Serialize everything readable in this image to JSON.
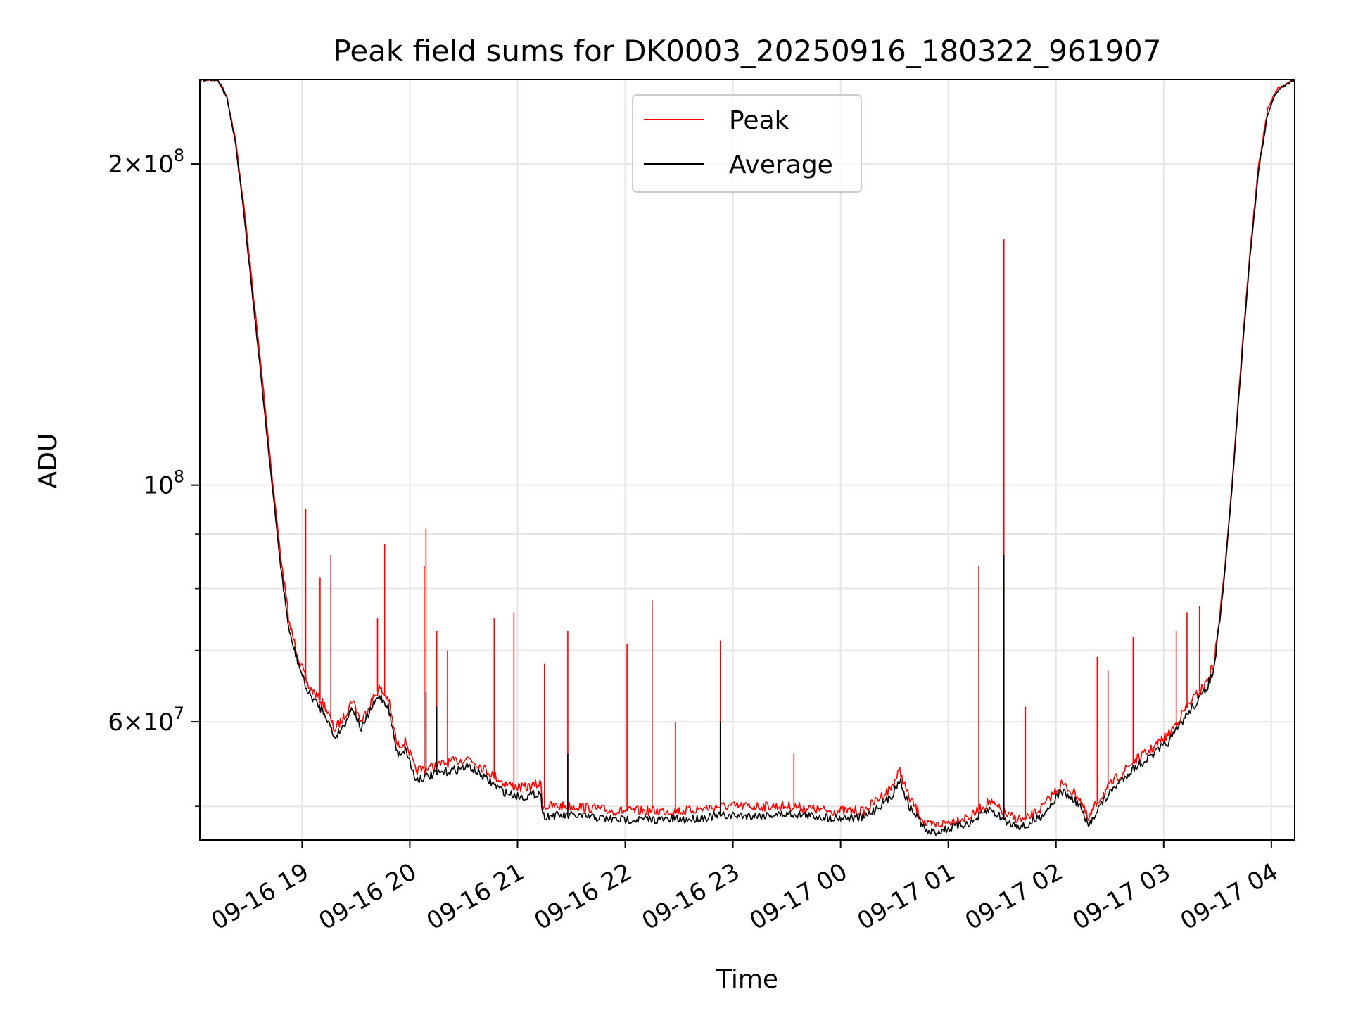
{
  "chart_data": {
    "type": "line",
    "title": "Peak field sums for DK0003_20250916_180322_961907",
    "xlabel": "Time",
    "ylabel": "ADU",
    "yscale": "log",
    "ylim": [
      46500000,
      240000000
    ],
    "xlim": [
      "2025-09-16 18:03",
      "2025-09-17 04:13"
    ],
    "grid": true,
    "legend_position": "top-center",
    "x_ticks": [
      {
        "t": "2025-09-16 19:00",
        "label": "09-16 19"
      },
      {
        "t": "2025-09-16 20:00",
        "label": "09-16 20"
      },
      {
        "t": "2025-09-16 21:00",
        "label": "09-16 21"
      },
      {
        "t": "2025-09-16 22:00",
        "label": "09-16 22"
      },
      {
        "t": "2025-09-16 23:00",
        "label": "09-16 23"
      },
      {
        "t": "2025-09-17 00:00",
        "label": "09-17 00"
      },
      {
        "t": "2025-09-17 01:00",
        "label": "09-17 01"
      },
      {
        "t": "2025-09-17 02:00",
        "label": "09-17 02"
      },
      {
        "t": "2025-09-17 03:00",
        "label": "09-17 03"
      },
      {
        "t": "2025-09-17 04:00",
        "label": "09-17 04"
      }
    ],
    "y_major_ticks": [
      {
        "v": 60000000,
        "mant": "6",
        "exp": "7",
        "show_mant": true
      },
      {
        "v": 100000000,
        "mant": "",
        "exp": "8",
        "show_mant": false
      },
      {
        "v": 200000000,
        "mant": "2",
        "exp": "8",
        "show_mant": true
      }
    ],
    "y_minor_ticks": [
      50000000,
      70000000,
      80000000,
      90000000
    ],
    "series": [
      {
        "name": "Peak",
        "color": "#ff0000",
        "points": [
          [
            "2025-09-16 18:03",
            240000000
          ],
          [
            "2025-09-16 18:13",
            240000000
          ],
          [
            "2025-09-16 18:18",
            232000000
          ],
          [
            "2025-09-16 18:23",
            210000000
          ],
          [
            "2025-09-16 18:28",
            180000000
          ],
          [
            "2025-09-16 18:33",
            150000000
          ],
          [
            "2025-09-16 18:38",
            125000000
          ],
          [
            "2025-09-16 18:43",
            103000000
          ],
          [
            "2025-09-16 18:48",
            86000000
          ],
          [
            "2025-09-16 18:53",
            74000000
          ],
          [
            "2025-09-16 18:58",
            69000000
          ],
          [
            "2025-09-16 19:03",
            65000000
          ],
          [
            "2025-09-16 19:08",
            63500000
          ],
          [
            "2025-09-16 19:13",
            62000000
          ],
          [
            "2025-09-16 19:18",
            59000000
          ],
          [
            "2025-09-16 19:23",
            60500000
          ],
          [
            "2025-09-16 19:28",
            63000000
          ],
          [
            "2025-09-16 19:33",
            60000000
          ],
          [
            "2025-09-16 19:38",
            62500000
          ],
          [
            "2025-09-16 19:43",
            64500000
          ],
          [
            "2025-09-16 19:48",
            63000000
          ],
          [
            "2025-09-16 19:53",
            57000000
          ],
          [
            "2025-09-16 19:58",
            57500000
          ],
          [
            "2025-09-16 20:03",
            54000000
          ],
          [
            "2025-09-16 20:13",
            54500000
          ],
          [
            "2025-09-16 20:23",
            55000000
          ],
          [
            "2025-09-16 20:33",
            55500000
          ],
          [
            "2025-09-16 20:43",
            54000000
          ],
          [
            "2025-09-16 20:53",
            52500000
          ],
          [
            "2025-09-16 21:03",
            52000000
          ],
          [
            "2025-09-16 21:13",
            52500000
          ],
          [
            "2025-09-16 21:14",
            50000000
          ],
          [
            "2025-09-16 21:33",
            50000000
          ],
          [
            "2025-09-16 21:53",
            49500000
          ],
          [
            "2025-09-16 22:13",
            49500000
          ],
          [
            "2025-09-16 22:33",
            49500000
          ],
          [
            "2025-09-16 22:53",
            50000000
          ],
          [
            "2025-09-16 23:13",
            50000000
          ],
          [
            "2025-09-16 23:33",
            50000000
          ],
          [
            "2025-09-16 23:53",
            49500000
          ],
          [
            "2025-09-17 00:13",
            49500000
          ],
          [
            "2025-09-17 00:28",
            52000000
          ],
          [
            "2025-09-17 00:33",
            54000000
          ],
          [
            "2025-09-17 00:38",
            51000000
          ],
          [
            "2025-09-17 00:43",
            49500000
          ],
          [
            "2025-09-17 00:48",
            48000000
          ],
          [
            "2025-09-17 00:53",
            48000000
          ],
          [
            "2025-09-17 01:03",
            48500000
          ],
          [
            "2025-09-17 01:13",
            49000000
          ],
          [
            "2025-09-17 01:23",
            50500000
          ],
          [
            "2025-09-17 01:33",
            49000000
          ],
          [
            "2025-09-17 01:43",
            48500000
          ],
          [
            "2025-09-17 01:53",
            50000000
          ],
          [
            "2025-09-17 02:03",
            52500000
          ],
          [
            "2025-09-17 02:13",
            51000000
          ],
          [
            "2025-09-17 02:18",
            48500000
          ],
          [
            "2025-09-17 02:23",
            50500000
          ],
          [
            "2025-09-17 02:33",
            53000000
          ],
          [
            "2025-09-17 02:43",
            55000000
          ],
          [
            "2025-09-17 02:53",
            56500000
          ],
          [
            "2025-09-17 03:03",
            58500000
          ],
          [
            "2025-09-17 03:13",
            62000000
          ],
          [
            "2025-09-17 03:23",
            65000000
          ],
          [
            "2025-09-17 03:28",
            68000000
          ],
          [
            "2025-09-17 03:33",
            80000000
          ],
          [
            "2025-09-17 03:38",
            100000000
          ],
          [
            "2025-09-17 03:43",
            130000000
          ],
          [
            "2025-09-17 03:48",
            165000000
          ],
          [
            "2025-09-17 03:53",
            200000000
          ],
          [
            "2025-09-17 03:58",
            225000000
          ],
          [
            "2025-09-17 04:03",
            235000000
          ],
          [
            "2025-09-17 04:13",
            240000000
          ]
        ]
      },
      {
        "name": "Average",
        "color": "#000000",
        "points": [
          [
            "2025-09-16 18:03",
            240000000
          ],
          [
            "2025-09-16 18:13",
            240000000
          ],
          [
            "2025-09-16 18:18",
            231000000
          ],
          [
            "2025-09-16 18:23",
            208000000
          ],
          [
            "2025-09-16 18:28",
            177000000
          ],
          [
            "2025-09-16 18:33",
            147000000
          ],
          [
            "2025-09-16 18:38",
            122000000
          ],
          [
            "2025-09-16 18:43",
            101000000
          ],
          [
            "2025-09-16 18:48",
            84000000
          ],
          [
            "2025-09-16 18:53",
            72500000
          ],
          [
            "2025-09-16 18:58",
            68000000
          ],
          [
            "2025-09-16 19:03",
            64000000
          ],
          [
            "2025-09-16 19:08",
            62500000
          ],
          [
            "2025-09-16 19:13",
            61000000
          ],
          [
            "2025-09-16 19:18",
            58000000
          ],
          [
            "2025-09-16 19:23",
            59500000
          ],
          [
            "2025-09-16 19:28",
            62000000
          ],
          [
            "2025-09-16 19:33",
            59000000
          ],
          [
            "2025-09-16 19:38",
            61500000
          ],
          [
            "2025-09-16 19:43",
            63500000
          ],
          [
            "2025-09-16 19:48",
            62000000
          ],
          [
            "2025-09-16 19:53",
            56000000
          ],
          [
            "2025-09-16 19:58",
            56500000
          ],
          [
            "2025-09-16 20:03",
            53000000
          ],
          [
            "2025-09-16 20:13",
            53500000
          ],
          [
            "2025-09-16 20:23",
            54000000
          ],
          [
            "2025-09-16 20:33",
            54500000
          ],
          [
            "2025-09-16 20:43",
            53000000
          ],
          [
            "2025-09-16 20:53",
            51500000
          ],
          [
            "2025-09-16 21:03",
            51000000
          ],
          [
            "2025-09-16 21:13",
            51500000
          ],
          [
            "2025-09-16 21:14",
            49000000
          ],
          [
            "2025-09-16 21:33",
            49000000
          ],
          [
            "2025-09-16 21:53",
            48600000
          ],
          [
            "2025-09-16 22:13",
            48600000
          ],
          [
            "2025-09-16 22:33",
            48600000
          ],
          [
            "2025-09-16 22:53",
            49000000
          ],
          [
            "2025-09-16 23:13",
            49000000
          ],
          [
            "2025-09-16 23:33",
            49200000
          ],
          [
            "2025-09-16 23:53",
            48800000
          ],
          [
            "2025-09-17 00:13",
            48800000
          ],
          [
            "2025-09-17 00:28",
            51000000
          ],
          [
            "2025-09-17 00:33",
            53000000
          ],
          [
            "2025-09-17 00:38",
            50000000
          ],
          [
            "2025-09-17 00:43",
            48800000
          ],
          [
            "2025-09-17 00:48",
            47300000
          ],
          [
            "2025-09-17 00:53",
            47300000
          ],
          [
            "2025-09-17 01:03",
            47800000
          ],
          [
            "2025-09-17 01:13",
            48300000
          ],
          [
            "2025-09-17 01:23",
            49700000
          ],
          [
            "2025-09-17 01:33",
            48300000
          ],
          [
            "2025-09-17 01:43",
            47800000
          ],
          [
            "2025-09-17 01:53",
            49200000
          ],
          [
            "2025-09-17 02:03",
            51700000
          ],
          [
            "2025-09-17 02:13",
            50200000
          ],
          [
            "2025-09-17 02:18",
            47800000
          ],
          [
            "2025-09-17 02:23",
            49700000
          ],
          [
            "2025-09-17 02:33",
            52200000
          ],
          [
            "2025-09-17 02:43",
            54200000
          ],
          [
            "2025-09-17 02:53",
            55700000
          ],
          [
            "2025-09-17 03:03",
            57500000
          ],
          [
            "2025-09-17 03:13",
            61000000
          ],
          [
            "2025-09-17 03:23",
            64000000
          ],
          [
            "2025-09-17 03:28",
            67000000
          ],
          [
            "2025-09-17 03:33",
            79000000
          ],
          [
            "2025-09-17 03:38",
            99000000
          ],
          [
            "2025-09-17 03:43",
            128000000
          ],
          [
            "2025-09-17 03:48",
            163000000
          ],
          [
            "2025-09-17 03:53",
            198000000
          ],
          [
            "2025-09-17 03:58",
            223000000
          ],
          [
            "2025-09-17 04:03",
            234000000
          ],
          [
            "2025-09-17 04:13",
            240000000
          ]
        ]
      }
    ],
    "peak_spikes": [
      [
        "2025-09-16 19:02",
        95000000
      ],
      [
        "2025-09-16 19:10",
        82000000
      ],
      [
        "2025-09-16 19:16",
        86000000
      ],
      [
        "2025-09-16 19:46",
        88000000
      ],
      [
        "2025-09-16 19:42",
        75000000
      ],
      [
        "2025-09-16 20:09",
        91000000
      ],
      [
        "2025-09-16 20:08",
        84000000
      ],
      [
        "2025-09-16 20:15",
        73000000
      ],
      [
        "2025-09-16 20:21",
        70000000
      ],
      [
        "2025-09-16 20:47",
        75000000
      ],
      [
        "2025-09-16 20:58",
        76000000
      ],
      [
        "2025-09-16 21:15",
        68000000
      ],
      [
        "2025-09-16 21:28",
        73000000
      ],
      [
        "2025-09-16 22:01",
        71000000
      ],
      [
        "2025-09-16 22:15",
        78000000
      ],
      [
        "2025-09-16 22:28",
        60000000
      ],
      [
        "2025-09-16 22:53",
        71500000
      ],
      [
        "2025-09-16 23:34",
        56000000
      ],
      [
        "2025-09-17 01:17",
        84000000
      ],
      [
        "2025-09-17 01:31",
        170000000
      ],
      [
        "2025-09-17 01:43",
        62000000
      ],
      [
        "2025-09-17 02:23",
        69000000
      ],
      [
        "2025-09-17 02:29",
        67000000
      ],
      [
        "2025-09-17 02:43",
        72000000
      ],
      [
        "2025-09-17 03:07",
        73000000
      ],
      [
        "2025-09-17 03:13",
        76000000
      ],
      [
        "2025-09-17 03:20",
        77000000
      ]
    ],
    "avg_spikes": [
      [
        "2025-09-16 20:09",
        64000000
      ],
      [
        "2025-09-16 20:15",
        62000000
      ],
      [
        "2025-09-16 21:28",
        56000000
      ],
      [
        "2025-09-16 22:53",
        60000000
      ],
      [
        "2025-09-17 01:31",
        86000000
      ]
    ]
  }
}
